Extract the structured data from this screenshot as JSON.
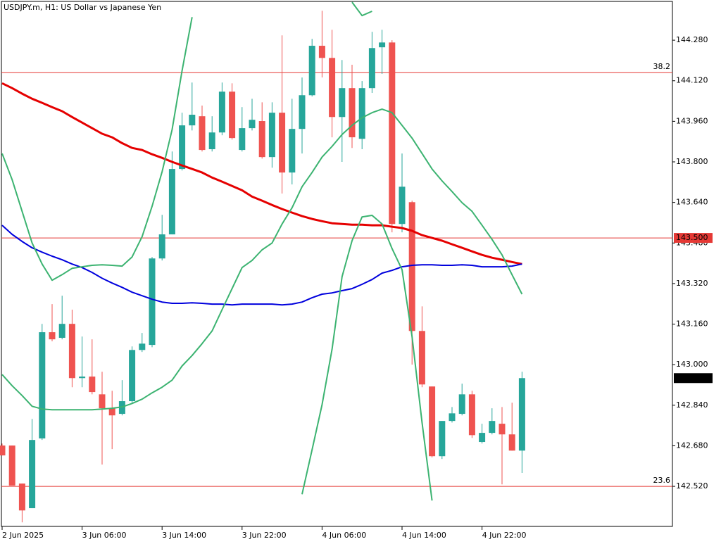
{
  "chart_data": {
    "type": "candlestick",
    "title": "USDJPY.m, H1:  US Dollar vs Japanese Yen",
    "categories": [
      "2 Jun 2025",
      null,
      null,
      null,
      null,
      null,
      null,
      null,
      "3 Jun 06:00",
      null,
      null,
      null,
      null,
      null,
      null,
      null,
      "3 Jun 14:00",
      null,
      null,
      null,
      null,
      null,
      null,
      null,
      "3 Jun 22:00",
      null,
      null,
      null,
      null,
      null,
      null,
      null,
      "4 Jun 06:00",
      null,
      null,
      null,
      null,
      null,
      null,
      null,
      "4 Jun 14:00",
      null,
      null,
      null,
      null,
      null,
      null,
      null,
      "4 Jun 22:00",
      null,
      null,
      null,
      null
    ],
    "open": [
      142.681,
      142.681,
      142.531,
      142.434,
      142.709,
      143.128,
      143.106,
      143.161,
      142.947,
      142.953,
      142.883,
      142.828,
      142.806,
      142.856,
      143.058,
      143.078,
      143.419,
      143.514,
      143.772,
      143.944,
      143.98,
      143.85,
      143.916,
      144.077,
      143.847,
      143.933,
      143.961,
      143.819,
      143.994,
      143.758,
      143.93,
      144.063,
      144.258,
      144.21,
      143.977,
      144.091,
      143.891,
      144.091,
      144.252,
      144.271,
      143.555,
      143.641,
      143.133,
      142.914,
      142.639,
      142.778,
      142.806,
      142.883,
      142.695,
      142.731,
      142.767,
      142.725,
      142.661
    ],
    "high": [
      142.689,
      142.681,
      142.531,
      142.786,
      143.161,
      143.239,
      143.272,
      143.217,
      143.111,
      143.1,
      142.972,
      142.897,
      142.939,
      143.072,
      143.125,
      143.425,
      143.591,
      143.841,
      143.994,
      144.113,
      144.022,
      143.98,
      144.113,
      144.11,
      144.016,
      144.049,
      144.035,
      144.035,
      144.299,
      144.049,
      144.133,
      144.285,
      144.396,
      144.321,
      144.202,
      144.183,
      144.119,
      144.313,
      144.321,
      144.28,
      143.833,
      143.647,
      143.23,
      142.914,
      142.778,
      142.833,
      142.925,
      142.897,
      142.767,
      142.828,
      142.833,
      142.85,
      142.972
    ],
    "low": [
      142.642,
      142.523,
      142.378,
      142.434,
      142.703,
      143.092,
      143.1,
      142.911,
      142.911,
      142.883,
      142.606,
      142.667,
      142.8,
      142.85,
      143.05,
      143.069,
      143.411,
      143.514,
      143.766,
      143.924,
      143.841,
      143.841,
      143.905,
      143.888,
      143.841,
      143.924,
      143.813,
      143.777,
      143.675,
      143.711,
      143.833,
      144.058,
      144.133,
      143.897,
      143.8,
      143.855,
      143.85,
      144.072,
      144.147,
      143.522,
      143.522,
      143.0,
      142.911,
      142.634,
      142.628,
      142.772,
      142.8,
      142.711,
      142.689,
      142.725,
      142.528,
      142.661,
      142.573
    ],
    "close": [
      142.642,
      142.523,
      142.425,
      142.703,
      143.128,
      143.1,
      143.161,
      142.947,
      142.953,
      142.892,
      142.828,
      142.8,
      142.856,
      143.058,
      143.083,
      143.419,
      143.514,
      143.772,
      143.944,
      143.986,
      143.847,
      143.916,
      144.077,
      143.894,
      143.933,
      143.966,
      143.819,
      143.994,
      143.758,
      143.93,
      144.063,
      144.258,
      144.21,
      143.977,
      144.091,
      143.897,
      144.091,
      144.249,
      144.271,
      143.555,
      143.702,
      143.133,
      142.922,
      142.639,
      142.778,
      142.808,
      142.883,
      142.722,
      142.731,
      142.778,
      142.725,
      142.661,
      142.947
    ],
    "up_color": "#26a69a",
    "down_color": "#ef5350",
    "series": [
      {
        "color": "#e50000",
        "values": [
          144.11,
          144.091,
          144.069,
          144.049,
          144.033,
          144.016,
          144.0,
          143.977,
          143.955,
          143.933,
          143.911,
          143.897,
          143.874,
          143.855,
          143.847,
          143.83,
          143.816,
          143.8,
          143.786,
          143.772,
          143.758,
          143.738,
          143.722,
          143.705,
          143.688,
          143.663,
          143.647,
          143.63,
          143.614,
          143.6,
          143.586,
          143.575,
          143.566,
          143.558,
          143.555,
          143.552,
          143.552,
          143.55,
          143.55,
          143.544,
          143.539,
          143.528,
          143.511,
          143.5,
          143.489,
          143.475,
          143.461,
          143.447,
          143.433,
          143.422,
          143.414,
          143.405,
          143.397
        ]
      },
      {
        "color": "#0000dd",
        "values": [
          143.55,
          143.514,
          143.486,
          143.461,
          143.444,
          143.428,
          143.414,
          143.397,
          143.383,
          143.364,
          143.341,
          143.322,
          143.305,
          143.286,
          143.272,
          143.258,
          143.247,
          143.242,
          143.242,
          143.244,
          143.242,
          143.239,
          143.239,
          143.236,
          143.239,
          143.239,
          143.239,
          143.239,
          143.236,
          143.239,
          143.247,
          143.264,
          143.278,
          143.283,
          143.292,
          143.3,
          143.317,
          143.336,
          143.361,
          143.372,
          143.386,
          143.392,
          143.394,
          143.394,
          143.392,
          143.392,
          143.394,
          143.392,
          143.386,
          143.386,
          143.386,
          143.389,
          143.397
        ]
      },
      {
        "color": "#3cb371",
        "values": [
          142.961,
          142.917,
          142.878,
          142.836,
          142.825,
          142.822,
          142.822,
          142.822,
          142.822,
          142.822,
          142.825,
          142.828,
          142.833,
          142.847,
          142.864,
          142.889,
          142.911,
          142.939,
          142.995,
          143.036,
          143.083,
          143.133,
          143.217,
          143.3,
          143.383,
          143.411,
          143.453,
          143.48,
          143.555,
          143.619,
          143.702,
          143.758,
          143.819,
          143.861,
          143.908,
          143.944,
          143.974,
          143.994,
          144.008,
          143.994,
          143.944,
          143.894,
          143.833,
          143.772,
          143.725,
          143.683,
          143.639,
          143.605,
          143.55,
          143.494,
          143.433,
          143.355,
          143.278
        ]
      },
      {
        "color": "#3cb371",
        "values": [
          143.833,
          143.73,
          143.605,
          143.48,
          143.397,
          143.333,
          143.355,
          143.38,
          143.386,
          143.392,
          143.394,
          143.392,
          143.389,
          143.425,
          143.505,
          143.625,
          143.761,
          143.927,
          144.16,
          144.371,
          null,
          null,
          null,
          null,
          null,
          null,
          null,
          null,
          null,
          null,
          null,
          null,
          null,
          null,
          null,
          144.43,
          144.377,
          144.394,
          null,
          null,
          null,
          null,
          null,
          null,
          null,
          null,
          null,
          null,
          null,
          null,
          null,
          null,
          null
        ]
      },
      {
        "color": "#3cb371",
        "values": [
          null,
          null,
          null,
          null,
          null,
          null,
          null,
          null,
          null,
          null,
          null,
          null,
          null,
          null,
          null,
          null,
          null,
          null,
          null,
          null,
          null,
          null,
          null,
          null,
          null,
          null,
          null,
          null,
          null,
          null,
          142.489,
          142.664,
          142.842,
          143.061,
          143.347,
          143.489,
          143.583,
          143.589,
          143.555,
          143.458,
          143.375,
          143.111,
          142.772,
          142.464,
          null,
          null,
          null,
          null,
          null,
          null,
          null,
          null,
          null
        ]
      }
    ],
    "levels": [
      {
        "label": "38.2",
        "price": 144.152
      },
      {
        "label": "23.6",
        "price": 142.52
      }
    ],
    "level_color": "#e53935",
    "price_line": {
      "value": 143.5,
      "label": "143.500"
    },
    "last_price": {
      "value": 142.947,
      "label": "142.947"
    },
    "ylim": [
      142.362,
      144.433
    ],
    "yticks": [
      {
        "value": 144.28,
        "label": "144.280"
      },
      {
        "value": 144.12,
        "label": "144.120"
      },
      {
        "value": 143.96,
        "label": "143.960"
      },
      {
        "value": 143.8,
        "label": "143.800"
      },
      {
        "value": 143.64,
        "label": "143.640"
      },
      {
        "value": 143.48,
        "label": "143.480"
      },
      {
        "value": 143.32,
        "label": "143.320"
      },
      {
        "value": 143.16,
        "label": "143.160"
      },
      {
        "value": 143.0,
        "label": "143.000"
      },
      {
        "value": 142.84,
        "label": "142.840"
      },
      {
        "value": 142.68,
        "label": "142.680"
      },
      {
        "value": 142.52,
        "label": "142.520"
      }
    ],
    "grid": false
  }
}
